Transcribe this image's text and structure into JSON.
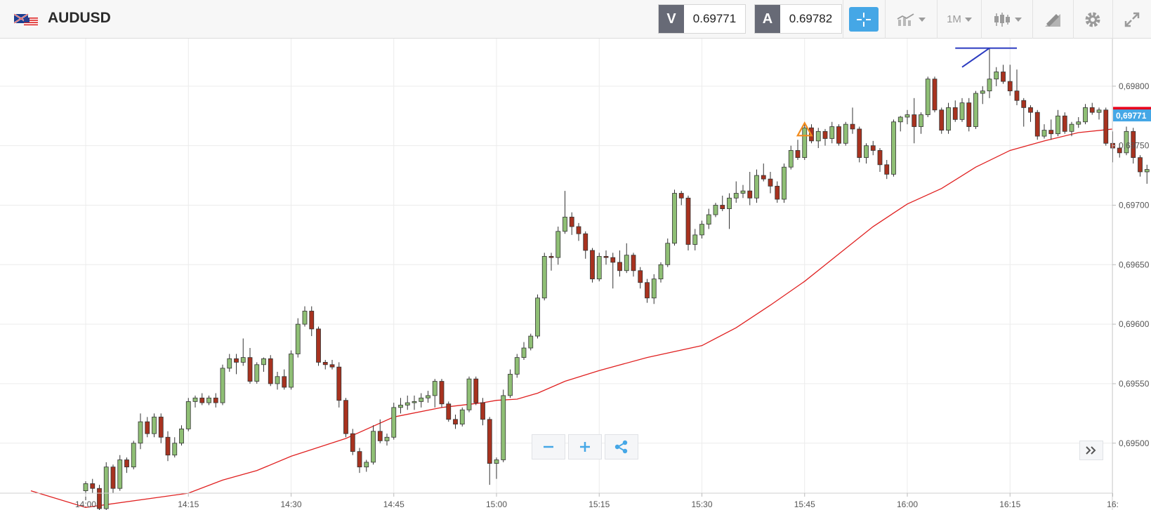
{
  "instrument": {
    "symbol": "AUDUSD",
    "flag_icon": "au-us-flag-icon"
  },
  "quotes": {
    "sell_label": "V",
    "sell_price": "0.69771",
    "buy_label": "A",
    "buy_price": "0.69782"
  },
  "toolbar": {
    "crosshair_icon": "crosshair-icon",
    "indicators_icon": "indicators-icon",
    "timeframe_label": "1M",
    "chart_type_icon": "candlestick-icon",
    "draw_icon": "pencil-ruler-icon",
    "settings_icon": "gear-icon",
    "fullscreen_icon": "expand-icon"
  },
  "colors": {
    "bull": "#8fbf75",
    "bear": "#a8321f",
    "ma": "#e02020",
    "trendline": "#2b3bc0",
    "marker": "#f28c1e",
    "price_tag": "#45a7e6",
    "ask_tag": "#e8001c"
  },
  "chart_data": {
    "type": "candlestick",
    "interval": "1M",
    "y_ticks": [
      "0,69500",
      "0,69550",
      "0,69600",
      "0,69650",
      "0,69700",
      "0,69750",
      "0,69800"
    ],
    "ylim": [
      0.69458,
      0.6984
    ],
    "x_ticks": [
      "14:00",
      "14:15",
      "14:30",
      "14:45",
      "15:00",
      "15:15",
      "15:30",
      "15:45",
      "16:00",
      "16:15",
      "16:"
    ],
    "x_tick_minutes": [
      0,
      15,
      30,
      45,
      60,
      75,
      90,
      105,
      120,
      135,
      150
    ],
    "current_price_label": "0,69771",
    "current_price": 0.69771,
    "ask_price": 0.69782,
    "candles": [
      [
        0.6946,
        0.69468,
        0.69452,
        0.69466
      ],
      [
        0.69466,
        0.6947,
        0.69458,
        0.69462
      ],
      [
        0.69462,
        0.69465,
        0.6944,
        0.69445
      ],
      [
        0.69445,
        0.69484,
        0.69443,
        0.6948
      ],
      [
        0.6948,
        0.69482,
        0.69458,
        0.69462
      ],
      [
        0.69462,
        0.6949,
        0.6946,
        0.69486
      ],
      [
        0.69486,
        0.69488,
        0.69475,
        0.6948
      ],
      [
        0.6948,
        0.69502,
        0.69478,
        0.695
      ],
      [
        0.695,
        0.69525,
        0.69495,
        0.69518
      ],
      [
        0.69518,
        0.69522,
        0.69505,
        0.69508
      ],
      [
        0.69508,
        0.69525,
        0.69505,
        0.69522
      ],
      [
        0.69522,
        0.69525,
        0.695,
        0.69505
      ],
      [
        0.69505,
        0.6951,
        0.69485,
        0.6949
      ],
      [
        0.6949,
        0.69505,
        0.69488,
        0.695
      ],
      [
        0.695,
        0.69515,
        0.69498,
        0.69512
      ],
      [
        0.69512,
        0.69538,
        0.6951,
        0.69535
      ],
      [
        0.69535,
        0.6954,
        0.6953,
        0.69538
      ],
      [
        0.69538,
        0.69542,
        0.69532,
        0.69534
      ],
      [
        0.69534,
        0.6954,
        0.69532,
        0.69538
      ],
      [
        0.69538,
        0.69542,
        0.6953,
        0.69534
      ],
      [
        0.69534,
        0.69566,
        0.69532,
        0.69563
      ],
      [
        0.69563,
        0.69575,
        0.6956,
        0.69571
      ],
      [
        0.69571,
        0.69575,
        0.69558,
        0.69568
      ],
      [
        0.69568,
        0.69588,
        0.69565,
        0.69572
      ],
      [
        0.69572,
        0.6958,
        0.6955,
        0.69552
      ],
      [
        0.69552,
        0.69568,
        0.6955,
        0.69566
      ],
      [
        0.69566,
        0.69572,
        0.6956,
        0.69571
      ],
      [
        0.69571,
        0.69574,
        0.69548,
        0.6955
      ],
      [
        0.6955,
        0.6956,
        0.69545,
        0.69556
      ],
      [
        0.69556,
        0.69562,
        0.69545,
        0.69547
      ],
      [
        0.69547,
        0.69578,
        0.69545,
        0.69575
      ],
      [
        0.69575,
        0.69605,
        0.69572,
        0.696
      ],
      [
        0.696,
        0.69615,
        0.69598,
        0.69611
      ],
      [
        0.69611,
        0.69615,
        0.6959,
        0.69596
      ],
      [
        0.69596,
        0.69598,
        0.69565,
        0.69568
      ],
      [
        0.69568,
        0.6957,
        0.69562,
        0.69566
      ],
      [
        0.69566,
        0.6957,
        0.69562,
        0.69564
      ],
      [
        0.69564,
        0.69568,
        0.6953,
        0.69536
      ],
      [
        0.69536,
        0.69538,
        0.69505,
        0.69508
      ],
      [
        0.69508,
        0.69512,
        0.6949,
        0.69493
      ],
      [
        0.69493,
        0.69496,
        0.69475,
        0.6948
      ],
      [
        0.6948,
        0.69486,
        0.69476,
        0.69484
      ],
      [
        0.69484,
        0.69515,
        0.69482,
        0.6951
      ],
      [
        0.6951,
        0.6952,
        0.695,
        0.69502
      ],
      [
        0.69502,
        0.69508,
        0.69498,
        0.69505
      ],
      [
        0.69505,
        0.69534,
        0.69503,
        0.6953
      ],
      [
        0.6953,
        0.69538,
        0.69525,
        0.69532
      ],
      [
        0.69532,
        0.6954,
        0.69528,
        0.69534
      ],
      [
        0.69534,
        0.6954,
        0.69528,
        0.69535
      ],
      [
        0.69535,
        0.69542,
        0.6953,
        0.69538
      ],
      [
        0.69538,
        0.69544,
        0.69534,
        0.6954
      ],
      [
        0.6954,
        0.69554,
        0.6953,
        0.69552
      ],
      [
        0.69552,
        0.69554,
        0.6953,
        0.69533
      ],
      [
        0.69533,
        0.69535,
        0.69518,
        0.6952
      ],
      [
        0.6952,
        0.69524,
        0.69512,
        0.69516
      ],
      [
        0.69516,
        0.6953,
        0.69514,
        0.69528
      ],
      [
        0.69528,
        0.69556,
        0.69526,
        0.69554
      ],
      [
        0.69554,
        0.69556,
        0.69532,
        0.69534
      ],
      [
        0.69534,
        0.69538,
        0.69515,
        0.6952
      ],
      [
        0.6952,
        0.69522,
        0.69465,
        0.69483
      ],
      [
        0.69483,
        0.69488,
        0.6947,
        0.69486
      ],
      [
        0.69486,
        0.69545,
        0.69484,
        0.6954
      ],
      [
        0.6954,
        0.69562,
        0.69538,
        0.69558
      ],
      [
        0.69558,
        0.69575,
        0.69555,
        0.69572
      ],
      [
        0.69572,
        0.69585,
        0.6957,
        0.6958
      ],
      [
        0.6958,
        0.69592,
        0.69578,
        0.6959
      ],
      [
        0.6959,
        0.69625,
        0.69588,
        0.69622
      ],
      [
        0.69622,
        0.6966,
        0.6962,
        0.69657
      ],
      [
        0.69657,
        0.6966,
        0.69645,
        0.69656
      ],
      [
        0.69656,
        0.69682,
        0.6965,
        0.69678
      ],
      [
        0.69678,
        0.69712,
        0.69676,
        0.6969
      ],
      [
        0.6969,
        0.69694,
        0.69675,
        0.69682
      ],
      [
        0.69682,
        0.69685,
        0.6967,
        0.69676
      ],
      [
        0.69676,
        0.69678,
        0.69655,
        0.69662
      ],
      [
        0.69662,
        0.69664,
        0.69635,
        0.69638
      ],
      [
        0.69638,
        0.6966,
        0.69636,
        0.69657
      ],
      [
        0.69657,
        0.69662,
        0.6965,
        0.69656
      ],
      [
        0.69656,
        0.6966,
        0.6963,
        0.69652
      ],
      [
        0.69652,
        0.69662,
        0.6964,
        0.69645
      ],
      [
        0.69645,
        0.69668,
        0.69643,
        0.69658
      ],
      [
        0.69658,
        0.6966,
        0.6964,
        0.69645
      ],
      [
        0.69645,
        0.69648,
        0.6963,
        0.69635
      ],
      [
        0.69635,
        0.69638,
        0.69618,
        0.69622
      ],
      [
        0.69622,
        0.69642,
        0.69617,
        0.69638
      ],
      [
        0.69638,
        0.69652,
        0.69635,
        0.6965
      ],
      [
        0.6965,
        0.69672,
        0.69648,
        0.69668
      ],
      [
        0.69668,
        0.69713,
        0.69666,
        0.6971
      ],
      [
        0.6971,
        0.69712,
        0.697,
        0.69706
      ],
      [
        0.69706,
        0.69708,
        0.69662,
        0.69667
      ],
      [
        0.69667,
        0.6968,
        0.69662,
        0.69675
      ],
      [
        0.69675,
        0.69687,
        0.69672,
        0.69684
      ],
      [
        0.69684,
        0.69697,
        0.6968,
        0.69692
      ],
      [
        0.69692,
        0.69702,
        0.6969,
        0.697
      ],
      [
        0.697,
        0.69708,
        0.69695,
        0.69697
      ],
      [
        0.69697,
        0.6971,
        0.6968,
        0.69706
      ],
      [
        0.69706,
        0.6972,
        0.69702,
        0.6971
      ],
      [
        0.6971,
        0.69717,
        0.69706,
        0.69712
      ],
      [
        0.69712,
        0.69728,
        0.697,
        0.69706
      ],
      [
        0.69706,
        0.6973,
        0.69702,
        0.69725
      ],
      [
        0.69725,
        0.69735,
        0.6972,
        0.69722
      ],
      [
        0.69722,
        0.69728,
        0.6971,
        0.69716
      ],
      [
        0.69716,
        0.6972,
        0.69702,
        0.69705
      ],
      [
        0.69705,
        0.69735,
        0.69702,
        0.69732
      ],
      [
        0.69732,
        0.6975,
        0.6973,
        0.69746
      ],
      [
        0.69746,
        0.69755,
        0.69738,
        0.6974
      ],
      [
        0.6974,
        0.69768,
        0.69738,
        0.69765
      ],
      [
        0.69765,
        0.69768,
        0.69752,
        0.69754
      ],
      [
        0.69754,
        0.69765,
        0.69748,
        0.69762
      ],
      [
        0.69762,
        0.69764,
        0.6975,
        0.69756
      ],
      [
        0.69756,
        0.6977,
        0.69752,
        0.69766
      ],
      [
        0.69766,
        0.69768,
        0.6975,
        0.69752
      ],
      [
        0.69752,
        0.6977,
        0.6975,
        0.69768
      ],
      [
        0.69768,
        0.69782,
        0.6976,
        0.69764
      ],
      [
        0.69764,
        0.69766,
        0.69736,
        0.6974
      ],
      [
        0.6974,
        0.69752,
        0.69735,
        0.6975
      ],
      [
        0.6975,
        0.69754,
        0.69742,
        0.69746
      ],
      [
        0.69746,
        0.69748,
        0.69728,
        0.69734
      ],
      [
        0.69734,
        0.69738,
        0.69722,
        0.69726
      ],
      [
        0.69726,
        0.69772,
        0.69724,
        0.6977
      ],
      [
        0.6977,
        0.69775,
        0.69762,
        0.69774
      ],
      [
        0.69774,
        0.6978,
        0.69768,
        0.69776
      ],
      [
        0.69776,
        0.6979,
        0.69752,
        0.69766
      ],
      [
        0.69766,
        0.69778,
        0.6976,
        0.69776
      ],
      [
        0.69776,
        0.69808,
        0.69774,
        0.69806
      ],
      [
        0.69806,
        0.69808,
        0.69778,
        0.6978
      ],
      [
        0.6978,
        0.69782,
        0.6976,
        0.69763
      ],
      [
        0.69763,
        0.69786,
        0.6976,
        0.69782
      ],
      [
        0.69782,
        0.69788,
        0.6977,
        0.69772
      ],
      [
        0.69772,
        0.6979,
        0.6977,
        0.69786
      ],
      [
        0.69786,
        0.6979,
        0.69762,
        0.69766
      ],
      [
        0.69766,
        0.69796,
        0.69764,
        0.69794
      ],
      [
        0.69794,
        0.698,
        0.69785,
        0.69796
      ],
      [
        0.69796,
        0.69832,
        0.6979,
        0.69806
      ],
      [
        0.69806,
        0.69816,
        0.698,
        0.69812
      ],
      [
        0.69812,
        0.69818,
        0.69802,
        0.69804
      ],
      [
        0.69804,
        0.69818,
        0.69792,
        0.69796
      ],
      [
        0.69796,
        0.69814,
        0.69784,
        0.69788
      ],
      [
        0.69788,
        0.6979,
        0.69766,
        0.69782
      ],
      [
        0.69782,
        0.69784,
        0.6977,
        0.69778
      ],
      [
        0.69778,
        0.6978,
        0.69755,
        0.69758
      ],
      [
        0.69758,
        0.69768,
        0.69756,
        0.69763
      ],
      [
        0.69763,
        0.69772,
        0.69755,
        0.6976
      ],
      [
        0.6976,
        0.6978,
        0.69758,
        0.69775
      ],
      [
        0.69775,
        0.69778,
        0.6976,
        0.69762
      ],
      [
        0.69762,
        0.6977,
        0.69758,
        0.69768
      ],
      [
        0.69768,
        0.69774,
        0.69765,
        0.6977
      ],
      [
        0.6977,
        0.69785,
        0.69768,
        0.69782
      ],
      [
        0.69782,
        0.69786,
        0.69776,
        0.69778
      ],
      [
        0.69778,
        0.69782,
        0.69772,
        0.6978
      ],
      [
        0.6978,
        0.69782,
        0.6975,
        0.69752
      ],
      [
        0.69752,
        0.69762,
        0.69736,
        0.69748
      ],
      [
        0.69748,
        0.69752,
        0.6974,
        0.69744
      ],
      [
        0.69744,
        0.69766,
        0.69742,
        0.69762
      ],
      [
        0.69762,
        0.69765,
        0.69735,
        0.6974
      ],
      [
        0.6974,
        0.69742,
        0.69724,
        0.69728
      ],
      [
        0.69728,
        0.69734,
        0.69718,
        0.6973
      ],
      [
        0.6973,
        0.69732,
        0.69716,
        0.69722
      ],
      [
        0.69722,
        0.6976,
        0.6972,
        0.69756
      ],
      [
        0.69756,
        0.69778,
        0.6975,
        0.69771
      ]
    ],
    "moving_average": [
      [
        -8,
        0.6946
      ],
      [
        0,
        0.69446
      ],
      [
        15,
        0.69458
      ],
      [
        20,
        0.69469
      ],
      [
        25,
        0.69477
      ],
      [
        30,
        0.69489
      ],
      [
        38,
        0.69504
      ],
      [
        45,
        0.69522
      ],
      [
        52,
        0.6953
      ],
      [
        58,
        0.69534
      ],
      [
        60,
        0.69536
      ],
      [
        63,
        0.69537
      ],
      [
        66,
        0.69542
      ],
      [
        70,
        0.69552
      ],
      [
        75,
        0.69561
      ],
      [
        82,
        0.69572
      ],
      [
        90,
        0.69582
      ],
      [
        95,
        0.69597
      ],
      [
        100,
        0.69616
      ],
      [
        105,
        0.69636
      ],
      [
        110,
        0.69659
      ],
      [
        115,
        0.69682
      ],
      [
        120,
        0.69701
      ],
      [
        125,
        0.69714
      ],
      [
        130,
        0.69732
      ],
      [
        135,
        0.69746
      ],
      [
        140,
        0.69754
      ],
      [
        145,
        0.69761
      ],
      [
        150,
        0.69764
      ]
    ]
  },
  "drawings": {
    "trendline": [
      [
        127,
        0.69832
      ],
      [
        136,
        0.69832
      ]
    ],
    "trendline2": [
      [
        128,
        0.69816
      ],
      [
        132,
        0.69832
      ]
    ],
    "triangle_marker": [
      105,
      0.69762
    ]
  },
  "zoom": {
    "zoom_out_icon": "minus-icon",
    "zoom_in_icon": "plus-icon",
    "share_icon": "share-icon",
    "scroll_right_icon": "double-chevron-right-icon"
  }
}
